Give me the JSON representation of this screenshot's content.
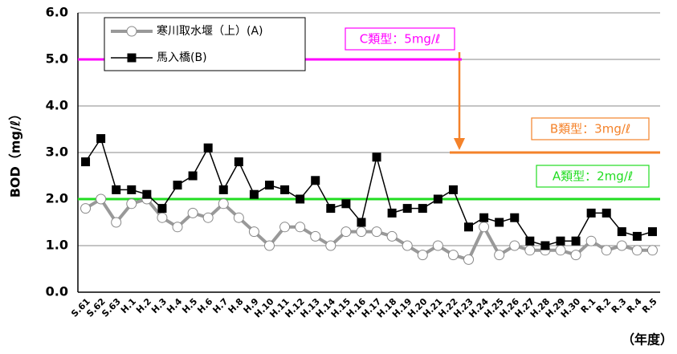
{
  "chart_data": {
    "type": "line",
    "ylabel": "BOD（mg/ℓ）",
    "xlabel": "（年度）",
    "categories": [
      "S.61",
      "S.62",
      "S.63",
      "H.1",
      "H.2",
      "H.3",
      "H.4",
      "H.5",
      "H.6",
      "H.7",
      "H.8",
      "H.9",
      "H.10",
      "H.11",
      "H.12",
      "H.13",
      "H.14",
      "H.15",
      "H.16",
      "H.17",
      "H.18",
      "H.19",
      "H.20",
      "H.21",
      "H.22",
      "H.23",
      "H.24",
      "H.25",
      "H.26",
      "H.27",
      "H.28",
      "H.29",
      "H.30",
      "R.1",
      "R.2",
      "R.3",
      "R.4",
      "R.5"
    ],
    "series": [
      {
        "name": "寒川取水堰（上）(A)",
        "color": "#999999",
        "marker": "circle",
        "values": [
          1.8,
          2.0,
          1.5,
          1.9,
          2.0,
          1.6,
          1.4,
          1.7,
          1.6,
          1.9,
          1.6,
          1.3,
          1.0,
          1.4,
          1.4,
          1.2,
          1.0,
          1.3,
          1.3,
          1.3,
          1.2,
          1.0,
          0.8,
          1.0,
          0.8,
          0.7,
          1.4,
          0.8,
          1.0,
          0.9,
          0.9,
          0.9,
          0.8,
          1.1,
          0.9,
          1.0,
          0.9,
          0.9
        ]
      },
      {
        "name": "馬入橋(B)",
        "color": "#000000",
        "marker": "square",
        "values": [
          2.8,
          3.3,
          2.2,
          2.2,
          2.1,
          1.8,
          2.3,
          2.5,
          3.1,
          2.2,
          2.8,
          2.1,
          2.3,
          2.2,
          2.0,
          2.4,
          1.8,
          1.9,
          1.5,
          2.9,
          1.7,
          1.8,
          1.8,
          2.0,
          2.2,
          1.4,
          1.6,
          1.5,
          1.6,
          1.1,
          1.0,
          1.1,
          1.1,
          1.7,
          1.7,
          1.3,
          1.2,
          1.3
        ]
      }
    ],
    "reference_lines": [
      {
        "value": 5,
        "label": "C類型：5mg/ℓ",
        "color": "#ff00ff"
      },
      {
        "value": 3,
        "label": "B類型：3mg/ℓ",
        "color": "#f4822a"
      },
      {
        "value": 2,
        "label": "A類型：2mg/ℓ",
        "color": "#22dd22"
      }
    ],
    "ylim": [
      0,
      6
    ],
    "yticks": [
      {
        "value": 0,
        "label": "0.0"
      },
      {
        "value": 1,
        "label": "1.0"
      },
      {
        "value": 2,
        "label": "2.0"
      },
      {
        "value": 3,
        "label": "3.0"
      },
      {
        "value": 4,
        "label": "4.0"
      },
      {
        "value": 5,
        "label": "5.0"
      },
      {
        "value": 6,
        "label": "6.0"
      }
    ],
    "grid": true
  }
}
